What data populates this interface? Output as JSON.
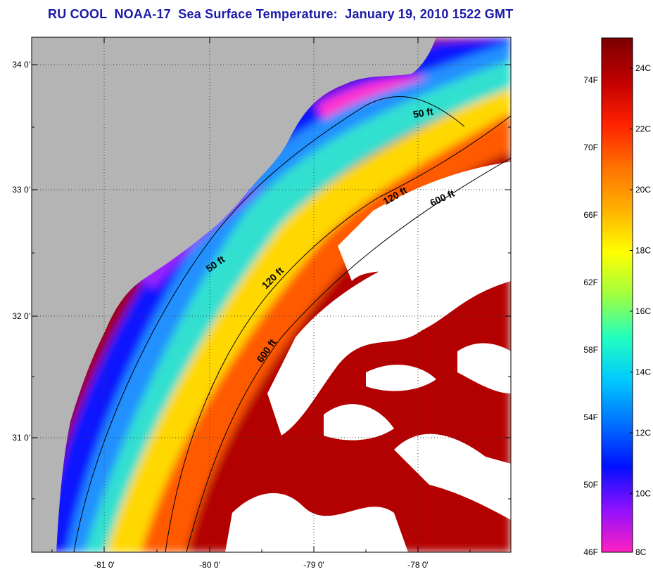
{
  "title": "RU COOL  NOAA-17  Sea Surface Temperature:  January 19, 2010 1522 GMT",
  "colors": {
    "title": "#1a1aa8",
    "land": "#b4b4b4",
    "cloud": "#ffffff",
    "contour": "#000000"
  },
  "map": {
    "lat_ticks": [
      "34 0'",
      "33 0'",
      "32 0'",
      "31 0'"
    ],
    "lon_ticks": [
      "-81 0'",
      "-80 0'",
      "-79 0'",
      "-78 0'"
    ],
    "isobaths": [
      {
        "label": "50 ft"
      },
      {
        "label": "50 ft"
      },
      {
        "label": "120 ft"
      },
      {
        "label": "120 ft"
      },
      {
        "label": "600 ft"
      },
      {
        "label": "600 ft"
      }
    ]
  },
  "colorbar": {
    "fahrenheit_labels": [
      "74F",
      "70F",
      "66F",
      "62F",
      "58F",
      "54F",
      "50F",
      "46F"
    ],
    "celsius_labels": [
      "24C",
      "22C",
      "20C",
      "18C",
      "16C",
      "14C",
      "12C",
      "10C",
      "8C"
    ],
    "stops": [
      "#7a0000",
      "#c00000",
      "#ff2000",
      "#ff7000",
      "#ffb000",
      "#ffff00",
      "#a0ff40",
      "#20ffc0",
      "#00c8ff",
      "#0070ff",
      "#0010ff",
      "#9010ff",
      "#ff20c0"
    ]
  }
}
